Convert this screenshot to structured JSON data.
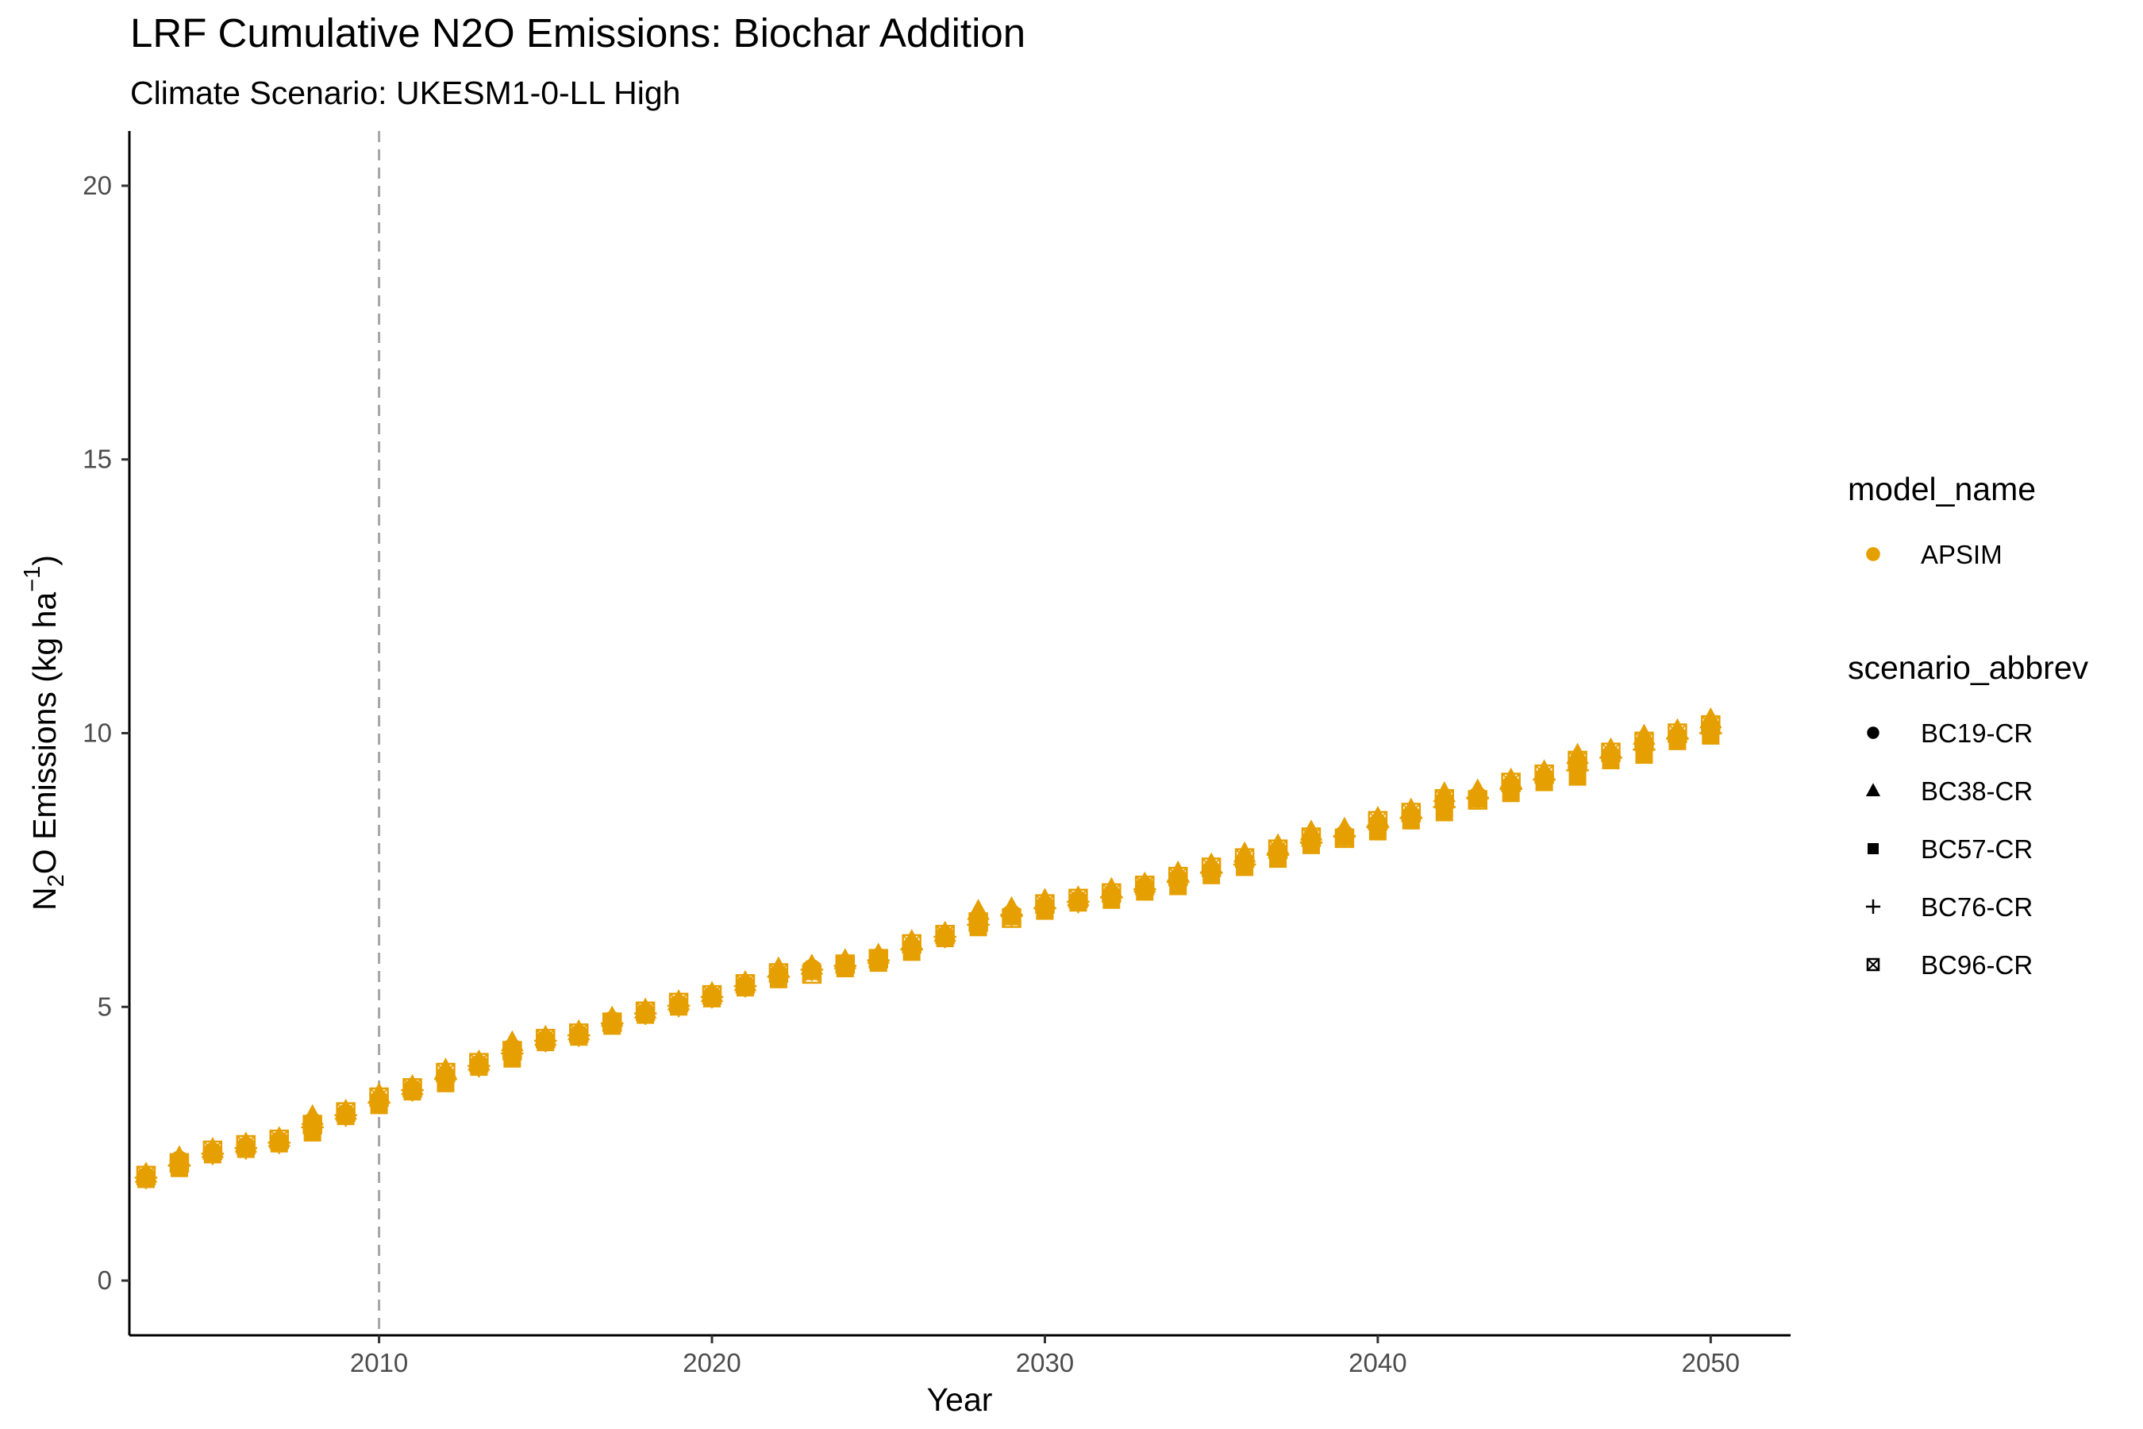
{
  "chart_data": {
    "type": "scatter",
    "title": "LRF  Cumulative N2O Emissions: Biochar Addition",
    "subtitle": "Climate Scenario: UKESM1-0-LL High",
    "xlabel": "Year",
    "ylabel": "N2O Emissions (kg ha-1)",
    "ylabel_parts": {
      "pre": "N",
      "sub": "2",
      "mid": "O Emissions (kg ha",
      "sup": "−1",
      "post": ")"
    },
    "xlim": [
      2002.5,
      2052.4
    ],
    "ylim": [
      -1,
      21
    ],
    "xticks": [
      2010,
      2020,
      2030,
      2040,
      2050
    ],
    "yticks": [
      0,
      5,
      10,
      15,
      20
    ],
    "grid": false,
    "reference_line": {
      "x": 2010,
      "style": "dashed",
      "color": "#a6a6a6"
    },
    "point_color": "#E69F00",
    "legend_position": "right",
    "legends": [
      {
        "title": "model_name",
        "items": [
          {
            "label": "APSIM",
            "shape": "circle",
            "color": "#E69F00"
          }
        ]
      },
      {
        "title": "scenario_abbrev",
        "items": [
          {
            "label": "BC19-CR",
            "shape": "circle"
          },
          {
            "label": "BC38-CR",
            "shape": "triangle"
          },
          {
            "label": "BC57-CR",
            "shape": "square"
          },
          {
            "label": "BC76-CR",
            "shape": "plus"
          },
          {
            "label": "BC96-CR",
            "shape": "square-cross"
          }
        ]
      }
    ],
    "x": [
      2003,
      2004,
      2005,
      2006,
      2007,
      2008,
      2009,
      2010,
      2011,
      2012,
      2013,
      2014,
      2015,
      2016,
      2017,
      2018,
      2019,
      2020,
      2021,
      2022,
      2023,
      2024,
      2025,
      2026,
      2027,
      2028,
      2029,
      2030,
      2031,
      2032,
      2033,
      2034,
      2035,
      2036,
      2037,
      2038,
      2039,
      2040,
      2041,
      2042,
      2043,
      2044,
      2045,
      2046,
      2047,
      2048,
      2049,
      2050
    ],
    "series": [
      {
        "name": "BC19-CR",
        "shape": "circle",
        "values": [
          1.9,
          2.2,
          2.35,
          2.45,
          2.55,
          2.9,
          3.05,
          3.3,
          3.5,
          3.75,
          3.95,
          4.25,
          4.4,
          4.5,
          4.75,
          4.9,
          5.05,
          5.2,
          5.4,
          5.6,
          5.7,
          5.8,
          5.9,
          6.1,
          6.3,
          6.6,
          6.7,
          6.85,
          6.95,
          7.05,
          7.2,
          7.35,
          7.5,
          7.65,
          7.85,
          8.05,
          8.15,
          8.35,
          8.5,
          8.75,
          8.85,
          9.05,
          9.2,
          9.45,
          9.6,
          9.8,
          9.95,
          10.1
        ]
      },
      {
        "name": "BC38-CR",
        "shape": "triangle",
        "values": [
          1.95,
          2.25,
          2.4,
          2.5,
          2.6,
          3.0,
          3.1,
          3.4,
          3.55,
          3.85,
          4.0,
          4.35,
          4.45,
          4.55,
          4.8,
          4.95,
          5.1,
          5.25,
          5.45,
          5.7,
          5.75,
          5.85,
          5.95,
          6.2,
          6.35,
          6.75,
          6.8,
          6.95,
          7.0,
          7.15,
          7.25,
          7.45,
          7.6,
          7.8,
          7.95,
          8.2,
          8.25,
          8.45,
          8.6,
          8.9,
          8.95,
          9.15,
          9.3,
          9.6,
          9.7,
          9.95,
          10.05,
          10.25
        ]
      },
      {
        "name": "BC57-CR",
        "shape": "square",
        "values": [
          1.85,
          2.05,
          2.3,
          2.4,
          2.5,
          2.7,
          3.0,
          3.2,
          3.45,
          3.6,
          3.9,
          4.05,
          4.35,
          4.45,
          4.65,
          4.85,
          5.0,
          5.15,
          5.35,
          5.5,
          5.65,
          5.7,
          5.8,
          6.0,
          6.25,
          6.45,
          6.65,
          6.75,
          6.9,
          6.95,
          7.1,
          7.2,
          7.4,
          7.55,
          7.7,
          7.95,
          8.1,
          8.2,
          8.4,
          8.55,
          8.8,
          8.9,
          9.1,
          9.2,
          9.5,
          9.6,
          9.85,
          9.95
        ]
      },
      {
        "name": "BC76-CR",
        "shape": "plus",
        "values": [
          1.88,
          2.1,
          2.32,
          2.42,
          2.52,
          2.8,
          3.02,
          3.25,
          3.48,
          3.68,
          3.92,
          4.15,
          4.38,
          4.48,
          4.7,
          4.88,
          5.02,
          5.18,
          5.38,
          5.55,
          5.68,
          5.75,
          5.85,
          6.05,
          6.28,
          6.5,
          6.68,
          6.8,
          6.92,
          7.0,
          7.15,
          7.28,
          7.45,
          7.6,
          7.78,
          8.0,
          8.12,
          8.28,
          8.45,
          8.65,
          8.82,
          8.98,
          9.15,
          9.32,
          9.55,
          9.7,
          9.9,
          10.0
        ]
      },
      {
        "name": "BC96-CR",
        "shape": "square-cross",
        "values": [
          1.92,
          2.15,
          2.38,
          2.48,
          2.58,
          2.85,
          3.08,
          3.35,
          3.52,
          3.8,
          3.98,
          4.2,
          4.42,
          4.52,
          4.72,
          4.92,
          5.08,
          5.22,
          5.42,
          5.62,
          5.6,
          5.78,
          5.88,
          6.15,
          6.32,
          6.55,
          6.62,
          6.88,
          6.98,
          7.08,
          7.22,
          7.38,
          7.55,
          7.72,
          7.88,
          8.1,
          8.08,
          8.4,
          8.55,
          8.8,
          8.78,
          9.1,
          9.25,
          9.5,
          9.65,
          9.85,
          10.0,
          10.15
        ]
      }
    ]
  }
}
